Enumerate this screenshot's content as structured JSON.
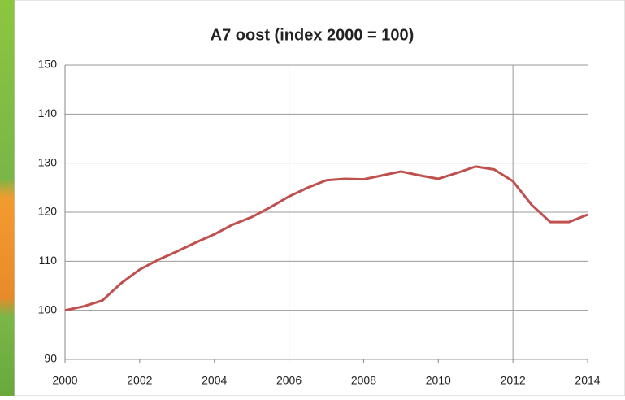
{
  "chart_data": {
    "type": "line",
    "title": "A7 oost (index 2000 = 100)",
    "x": [
      2000,
      2000.5,
      2001,
      2001.5,
      2002,
      2002.5,
      2003,
      2003.5,
      2004,
      2004.5,
      2005,
      2005.5,
      2006,
      2006.5,
      2007,
      2007.5,
      2008,
      2008.5,
      2009,
      2009.5,
      2010,
      2010.5,
      2011,
      2011.5,
      2012,
      2012.5,
      2013,
      2013.5,
      2014
    ],
    "series": [
      {
        "color": "#c0504d",
        "values": [
          100,
          100.8,
          102,
          105.5,
          108.3,
          110.3,
          112,
          113.8,
          115.5,
          117.5,
          119,
          121,
          123.2,
          125,
          126.5,
          126.8,
          126.7,
          127.5,
          128.3,
          127.5,
          126.8,
          128,
          129.3,
          128.7,
          126.3,
          121.5,
          118,
          118,
          119.5
        ]
      }
    ],
    "xlim": [
      2000,
      2014
    ],
    "xticks": [
      2000,
      2002,
      2004,
      2006,
      2008,
      2010,
      2012,
      2014
    ],
    "ylim": [
      90,
      150
    ],
    "yticks": [
      90,
      100,
      110,
      120,
      130,
      140,
      150
    ],
    "grid": true,
    "x_gridlines": [
      2006,
      2012
    ]
  }
}
